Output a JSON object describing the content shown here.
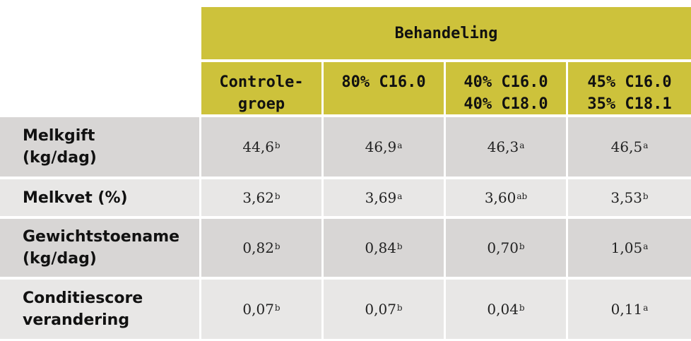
{
  "table": {
    "group_header": "Behandeling",
    "columns": [
      {
        "lines": [
          "Controle-",
          "groep"
        ]
      },
      {
        "lines": [
          "80% C16.0"
        ]
      },
      {
        "lines": [
          "40% C16.0",
          "40% C18.0"
        ]
      },
      {
        "lines": [
          "45% C16.0",
          "35% C18.1"
        ]
      }
    ],
    "rows": [
      {
        "label_lines": [
          "Melkgift",
          "(kg/dag)"
        ],
        "cells": [
          {
            "value": "44,6",
            "sup": "b"
          },
          {
            "value": "46,9",
            "sup": "a"
          },
          {
            "value": "46,3",
            "sup": "a"
          },
          {
            "value": "46,5",
            "sup": "a"
          }
        ]
      },
      {
        "label_lines": [
          "Melkvet (%)"
        ],
        "cells": [
          {
            "value": "3,62",
            "sup": "b"
          },
          {
            "value": "3,69",
            "sup": "a"
          },
          {
            "value": "3,60",
            "sup": "ab"
          },
          {
            "value": "3,53",
            "sup": "b"
          }
        ]
      },
      {
        "label_lines": [
          "Gewichtstoename",
          "(kg/dag)"
        ],
        "cells": [
          {
            "value": "0,82",
            "sup": "b"
          },
          {
            "value": "0,84",
            "sup": "b"
          },
          {
            "value": "0,70",
            "sup": "b"
          },
          {
            "value": "1,05",
            "sup": "a"
          }
        ]
      },
      {
        "label_lines": [
          "Conditiescore",
          "verandering"
        ],
        "cells": [
          {
            "value": "0,07",
            "sup": "b"
          },
          {
            "value": "0,07",
            "sup": "b"
          },
          {
            "value": "0,04",
            "sup": "b"
          },
          {
            "value": "0,11",
            "sup": "a"
          }
        ]
      }
    ]
  },
  "colors": {
    "header_yellow": "#cdc23b",
    "row_dark": "#d8d6d5",
    "row_light": "#e8e7e6"
  }
}
